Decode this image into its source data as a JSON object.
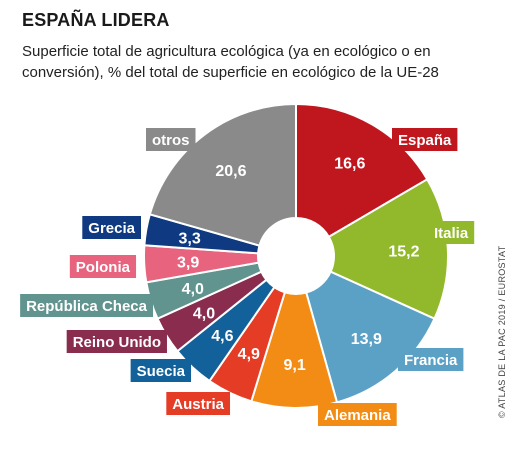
{
  "header": {
    "title": "ESPAÑA LIDERA",
    "subtitle": "Superficie total de agricultura ecológica (ya en ecológico o en conversión), % del total de superficie en ecológico de la UE-28"
  },
  "source": "© ATLAS DE LA PAC 2019 / EUROSTAT",
  "chart_data": {
    "type": "pie",
    "title": "ESPAÑA LIDERA",
    "subtitle": "Superficie total de agricultura ecológica (ya en ecológico o en conversión), % del total de superficie en ecológico de la UE-28",
    "unit": "%",
    "slices": [
      {
        "label": "España",
        "value": 16.6,
        "value_label": "16,6",
        "color": "#c0171f"
      },
      {
        "label": "Italia",
        "value": 15.2,
        "value_label": "15,2",
        "color": "#92b92b"
      },
      {
        "label": "Francia",
        "value": 13.9,
        "value_label": "13,9",
        "color": "#5ba1c6"
      },
      {
        "label": "Alemania",
        "value": 9.1,
        "value_label": "9,1",
        "color": "#f28c14"
      },
      {
        "label": "Austria",
        "value": 4.9,
        "value_label": "4,9",
        "color": "#e43c25"
      },
      {
        "label": "Suecia",
        "value": 4.6,
        "value_label": "4,6",
        "color": "#12619a"
      },
      {
        "label": "Reino Unido",
        "value": 4.0,
        "value_label": "4,0",
        "color": "#892c4e"
      },
      {
        "label": "República Checa",
        "value": 4.0,
        "value_label": "4,0",
        "color": "#61948e"
      },
      {
        "label": "Polonia",
        "value": 3.9,
        "value_label": "3,9",
        "color": "#e8637e"
      },
      {
        "label": "Grecia",
        "value": 3.3,
        "value_label": "3,3",
        "color": "#0f3a81"
      },
      {
        "label": "otros",
        "value": 20.6,
        "value_label": "20,6",
        "color": "#8a8a8a"
      }
    ]
  }
}
